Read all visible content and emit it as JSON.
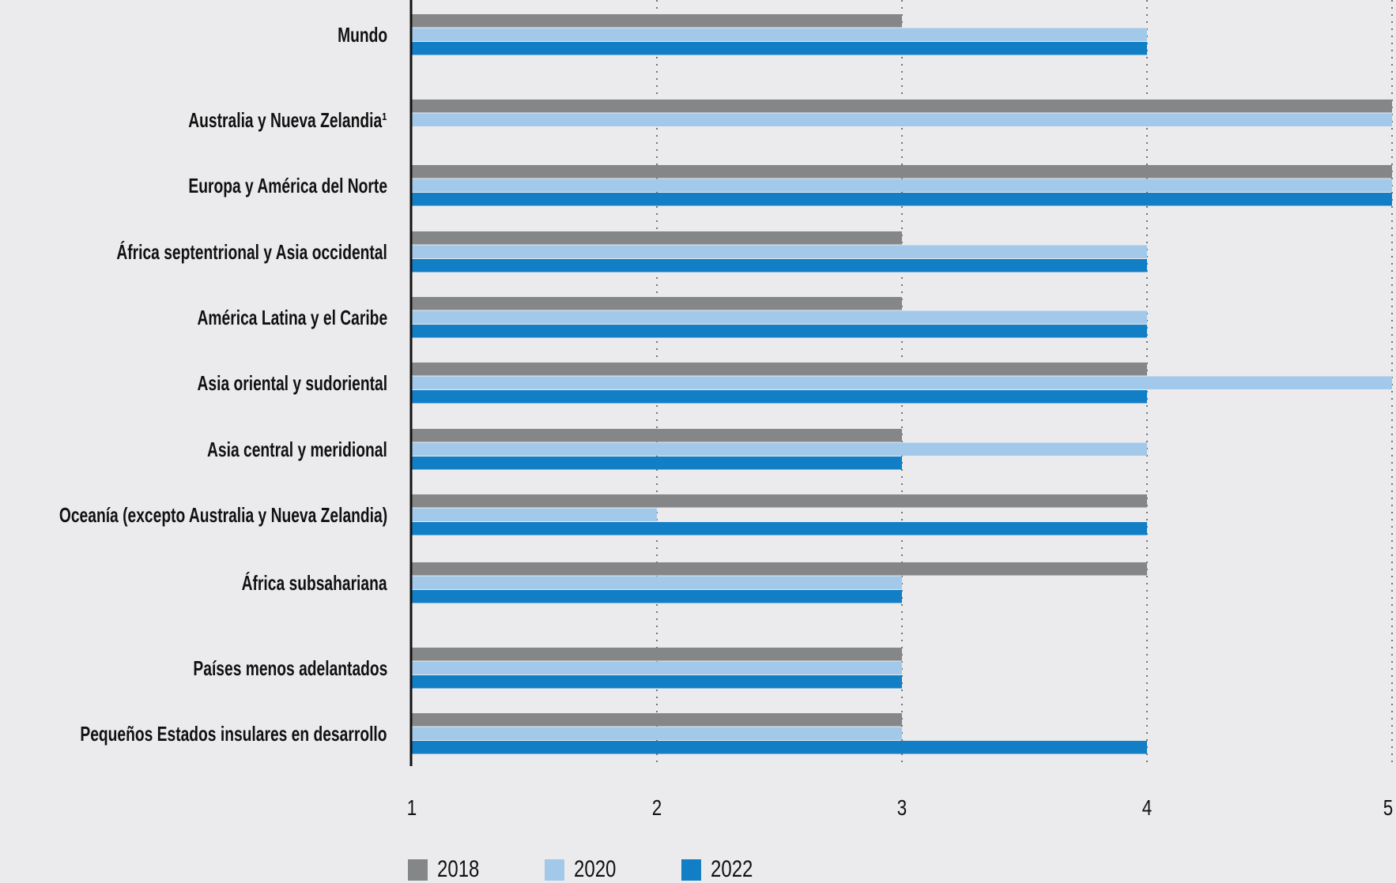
{
  "chart_data": {
    "type": "bar",
    "orientation": "horizontal",
    "title": "",
    "xlabel": "",
    "ylabel": "",
    "xlim": [
      1,
      5
    ],
    "x_ticks": [
      "1",
      "2",
      "3",
      "4",
      "5"
    ],
    "grid": "vertical dotted",
    "legend_position": "bottom-left",
    "categories": [
      "Mundo",
      "Australia y Nueva Zelandia¹",
      "Europa y América del Norte",
      "África septentrional y Asia occidental",
      "América Latina y el Caribe",
      "Asia oriental y sudoriental",
      "Asia central y meridional",
      "Oceanía (excepto Australia y Nueva Zelandia)",
      "África subsahariana",
      "Países menos adelantados",
      "Pequeños Estados insulares en desarrollo"
    ],
    "series": [
      {
        "name": "2018",
        "color": "#858688",
        "values": [
          3,
          5,
          5,
          3,
          3,
          4,
          3,
          4,
          4,
          3,
          3
        ]
      },
      {
        "name": "2020",
        "color": "#a3c9ea",
        "values": [
          4,
          5,
          5,
          4,
          4,
          5,
          4,
          2,
          3,
          3,
          3
        ]
      },
      {
        "name": "2022",
        "color": "#127ec6",
        "values": [
          4,
          null,
          5,
          4,
          4,
          4,
          3,
          4,
          3,
          3,
          4
        ]
      }
    ]
  }
}
